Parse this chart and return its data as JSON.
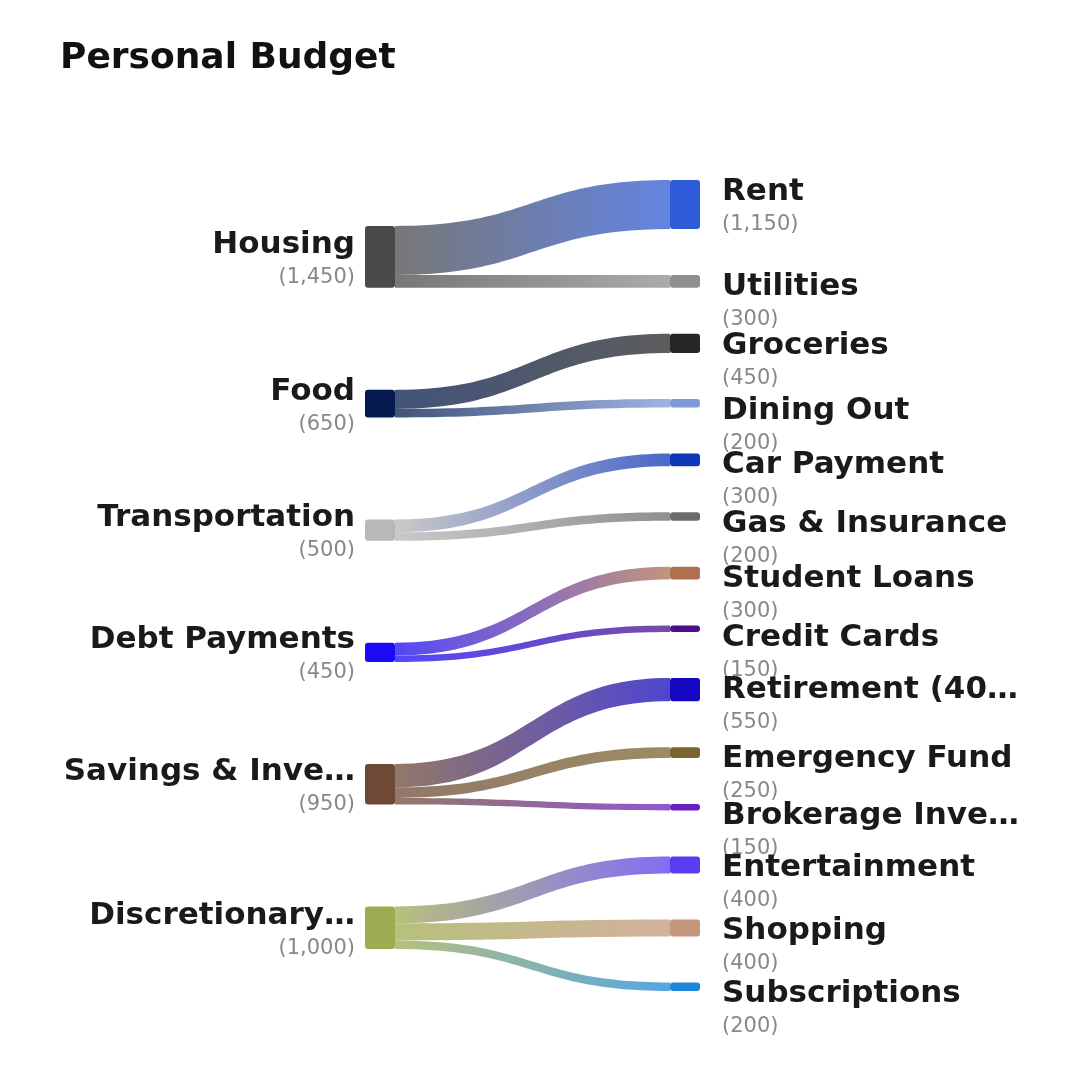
{
  "chart_data": {
    "type": "other",
    "title": "Personal Budget",
    "categories": [
      "Housing",
      "Food",
      "Transportation",
      "Debt Payments",
      "Savings & Inve…",
      "Discretionary…"
    ],
    "values": [
      1450,
      650,
      500,
      450,
      950,
      1000
    ],
    "value_labels": [
      "(1,450)",
      "(650)",
      "(500)",
      "(450)",
      "(950)",
      "(1,000)"
    ],
    "colors": [
      "#4a4a4a",
      "#041a4e",
      "#b8b8b8",
      "#1a0af5",
      "#6e4a36",
      "#9fab50"
    ],
    "series": [
      {
        "name": "Rent",
        "color": "#2f5bd8",
        "values": [
          1150,
          null,
          null,
          null,
          null,
          null
        ],
        "value_labels": [
          "(1,150)",
          null,
          null,
          null,
          null,
          null
        ]
      },
      {
        "name": "Utilities",
        "color": "#8f8f8f",
        "values": [
          300,
          null,
          null,
          null,
          null,
          null
        ],
        "value_labels": [
          "(300)",
          null,
          null,
          null,
          null,
          null
        ]
      },
      {
        "name": "Groceries",
        "color": "#262626",
        "values": [
          null,
          450,
          null,
          null,
          null,
          null
        ],
        "value_labels": [
          null,
          "(450)",
          null,
          null,
          null,
          null
        ]
      },
      {
        "name": "Dining Out",
        "color": "#7f99d9",
        "values": [
          null,
          200,
          null,
          null,
          null,
          null
        ],
        "value_labels": [
          null,
          "(200)",
          null,
          null,
          null,
          null
        ]
      },
      {
        "name": "Car Payment",
        "color": "#0e35b8",
        "values": [
          null,
          null,
          300,
          null,
          null,
          null
        ],
        "value_labels": [
          null,
          null,
          "(300)",
          null,
          null,
          null
        ]
      },
      {
        "name": "Gas & Insurance",
        "color": "#6a6a6a",
        "values": [
          null,
          null,
          200,
          null,
          null,
          null
        ],
        "value_labels": [
          null,
          null,
          "(200)",
          null,
          null,
          null
        ]
      },
      {
        "name": "Student Loans",
        "color": "#b07050",
        "values": [
          null,
          null,
          null,
          300,
          null,
          null
        ],
        "value_labels": [
          null,
          null,
          null,
          "(300)",
          null,
          null
        ]
      },
      {
        "name": "Credit Cards",
        "color": "#4a0f8a",
        "values": [
          null,
          null,
          null,
          150,
          null,
          null
        ],
        "value_labels": [
          null,
          null,
          null,
          "(150)",
          null,
          null
        ]
      },
      {
        "name": "Retirement (40…",
        "color": "#1408c0",
        "values": [
          null,
          null,
          null,
          null,
          550,
          null
        ],
        "value_labels": [
          null,
          null,
          null,
          null,
          "(550)",
          null
        ]
      },
      {
        "name": "Emergency Fund",
        "color": "#7a6530",
        "values": [
          null,
          null,
          null,
          null,
          250,
          null
        ],
        "value_labels": [
          null,
          null,
          null,
          null,
          "(250)",
          null
        ]
      },
      {
        "name": "Brokerage Inve…",
        "color": "#6a20c0",
        "values": [
          null,
          null,
          null,
          null,
          150,
          null
        ],
        "value_labels": [
          null,
          null,
          null,
          null,
          "(150)",
          null
        ]
      },
      {
        "name": "Entertainment",
        "color": "#5a3cf0",
        "values": [
          null,
          null,
          null,
          null,
          null,
          400
        ],
        "value_labels": [
          null,
          null,
          null,
          null,
          null,
          "(400)"
        ]
      },
      {
        "name": "Shopping",
        "color": "#c4967c",
        "values": [
          null,
          null,
          null,
          null,
          null,
          400
        ],
        "value_labels": [
          null,
          null,
          null,
          null,
          null,
          "(400)"
        ]
      },
      {
        "name": "Subscriptions",
        "color": "#1e88d8",
        "values": [
          null,
          null,
          null,
          null,
          null,
          200
        ],
        "value_labels": [
          null,
          null,
          null,
          null,
          null,
          "(200)"
        ]
      }
    ]
  }
}
